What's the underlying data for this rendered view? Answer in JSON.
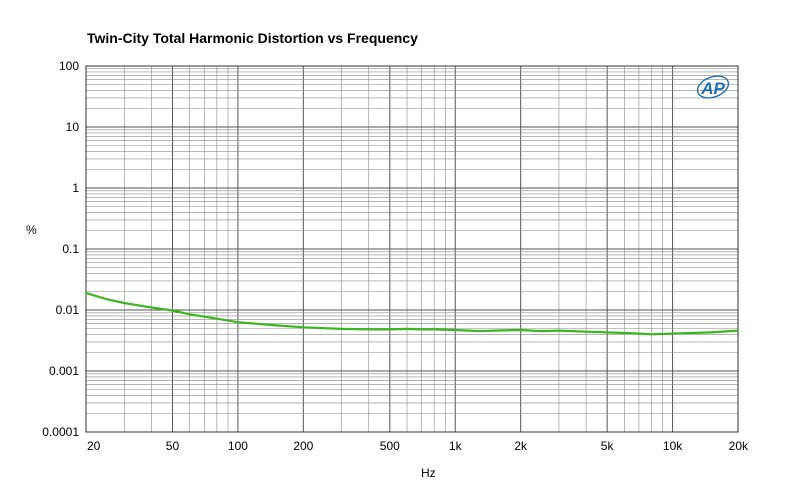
{
  "chart_data": {
    "type": "line",
    "title": "Twin-City Total Harmonic Distortion vs Frequency",
    "xlabel": "Hz",
    "ylabel": "%",
    "x_scale": "log",
    "y_scale": "log",
    "xlim": [
      20,
      20000
    ],
    "ylim": [
      0.0001,
      100
    ],
    "grid": true,
    "legend": "none",
    "x_ticks": [
      {
        "value": 20,
        "label": "20"
      },
      {
        "value": 50,
        "label": "50"
      },
      {
        "value": 100,
        "label": "100"
      },
      {
        "value": 200,
        "label": "200"
      },
      {
        "value": 500,
        "label": "500"
      },
      {
        "value": 1000,
        "label": "1k"
      },
      {
        "value": 2000,
        "label": "2k"
      },
      {
        "value": 5000,
        "label": "5k"
      },
      {
        "value": 10000,
        "label": "10k"
      },
      {
        "value": 20000,
        "label": "20k"
      }
    ],
    "y_ticks": [
      {
        "value": 100,
        "label": "100"
      },
      {
        "value": 10,
        "label": "10"
      },
      {
        "value": 1,
        "label": "1"
      },
      {
        "value": 0.1,
        "label": "0.1"
      },
      {
        "value": 0.01,
        "label": "0.01"
      },
      {
        "value": 0.001,
        "label": "0.001"
      },
      {
        "value": 0.0001,
        "label": "0.0001"
      }
    ],
    "series": [
      {
        "color": "#3cb521",
        "x": [
          20,
          25,
          30,
          40,
          50,
          60,
          70,
          80,
          100,
          150,
          200,
          300,
          400,
          500,
          600,
          700,
          800,
          1000,
          1300,
          1500,
          2000,
          2500,
          3000,
          4000,
          5000,
          6000,
          7000,
          8000,
          10000,
          15000,
          20000
        ],
        "y": [
          0.019,
          0.015,
          0.013,
          0.011,
          0.0098,
          0.0085,
          0.0078,
          0.0072,
          0.0063,
          0.0056,
          0.0052,
          0.0049,
          0.0048,
          0.0048,
          0.0049,
          0.0048,
          0.0048,
          0.0047,
          0.0045,
          0.0046,
          0.0047,
          0.0045,
          0.0046,
          0.0044,
          0.0043,
          0.0042,
          0.0041,
          0.004,
          0.0041,
          0.0043,
          0.0046
        ]
      }
    ]
  },
  "logo": {
    "text": "AP",
    "color": "#1f6fb5"
  }
}
